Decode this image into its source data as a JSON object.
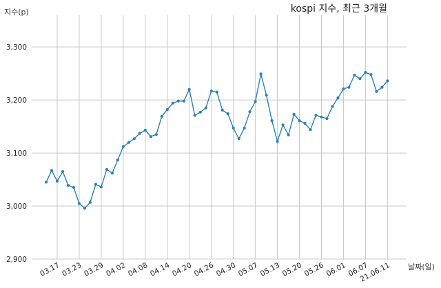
{
  "chart_data": {
    "type": "line",
    "title": "kospi 지수, 최근 3개월",
    "xlabel": "날짜(일)",
    "ylabel": "지수(p)",
    "ylim": [
      2900,
      3360
    ],
    "grid": true,
    "x_ticks": [
      "03.17",
      "03.23",
      "03.29",
      "04.02",
      "04.08",
      "04.14",
      "04.20",
      "04.26",
      "04.30",
      "05.07",
      "05.13",
      "05.20",
      "05.26",
      "06.01",
      "06.07",
      "21.06.11"
    ],
    "y_ticks": [
      {
        "value": 2900,
        "label": "2,900"
      },
      {
        "value": 3000,
        "label": "3,000"
      },
      {
        "value": 3100,
        "label": "3,100"
      },
      {
        "value": 3200,
        "label": "3,200"
      },
      {
        "value": 3300,
        "label": "3,300"
      }
    ],
    "series": [
      {
        "color": "#2e7fb0",
        "values": [
          3045,
          3067,
          3047,
          3065,
          3039,
          3035,
          3005,
          2996,
          3007,
          3041,
          3036,
          3069,
          3062,
          3087,
          3112,
          3120,
          3127,
          3137,
          3143,
          3131,
          3135,
          3169,
          3182,
          3194,
          3198,
          3198,
          3220,
          3171,
          3177,
          3185,
          3217,
          3215,
          3181,
          3174,
          3147,
          3127,
          3147,
          3178,
          3197,
          3249,
          3209,
          3161,
          3122,
          3153,
          3134,
          3173,
          3161,
          3156,
          3144,
          3171,
          3168,
          3165,
          3188,
          3204,
          3221,
          3224,
          3247,
          3240,
          3252,
          3248,
          3216,
          3224,
          3236
        ]
      }
    ]
  }
}
